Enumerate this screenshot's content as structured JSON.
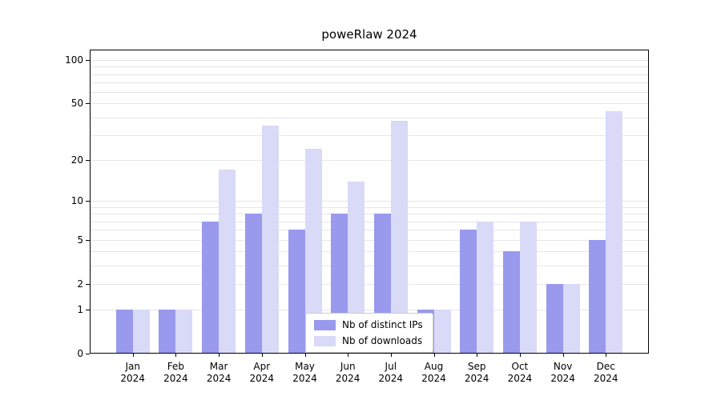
{
  "title": "poweRlaw 2024",
  "chart_data": {
    "type": "bar",
    "scale": "log1p",
    "title": "poweRlaw 2024",
    "categories": [
      "Jan 2024",
      "Feb 2024",
      "Mar 2024",
      "Apr 2024",
      "May 2024",
      "Jun 2024",
      "Jul 2024",
      "Aug 2024",
      "Sep 2024",
      "Oct 2024",
      "Nov 2024",
      "Dec 2024"
    ],
    "series": [
      {
        "name": "Nb of distinct IPs",
        "color": "#9999ee",
        "values": [
          1,
          1,
          7,
          8,
          6,
          8,
          8,
          1,
          6,
          4,
          2,
          5
        ]
      },
      {
        "name": "Nb of downloads",
        "color": "#d9d9f8",
        "values": [
          1,
          1,
          17,
          35,
          24,
          14,
          38,
          1,
          7,
          7,
          2,
          44
        ]
      }
    ],
    "yticks": [
      0,
      1,
      2,
      5,
      10,
      20,
      50,
      100
    ],
    "gridlines": [
      1,
      2,
      3,
      4,
      5,
      6,
      7,
      8,
      9,
      10,
      20,
      30,
      40,
      50,
      60,
      70,
      80,
      90,
      100
    ],
    "ylim": [
      0,
      118
    ],
    "xlabel": "",
    "ylabel": "",
    "grid": "horizontal",
    "legend_position": "bottom-center-inside"
  }
}
